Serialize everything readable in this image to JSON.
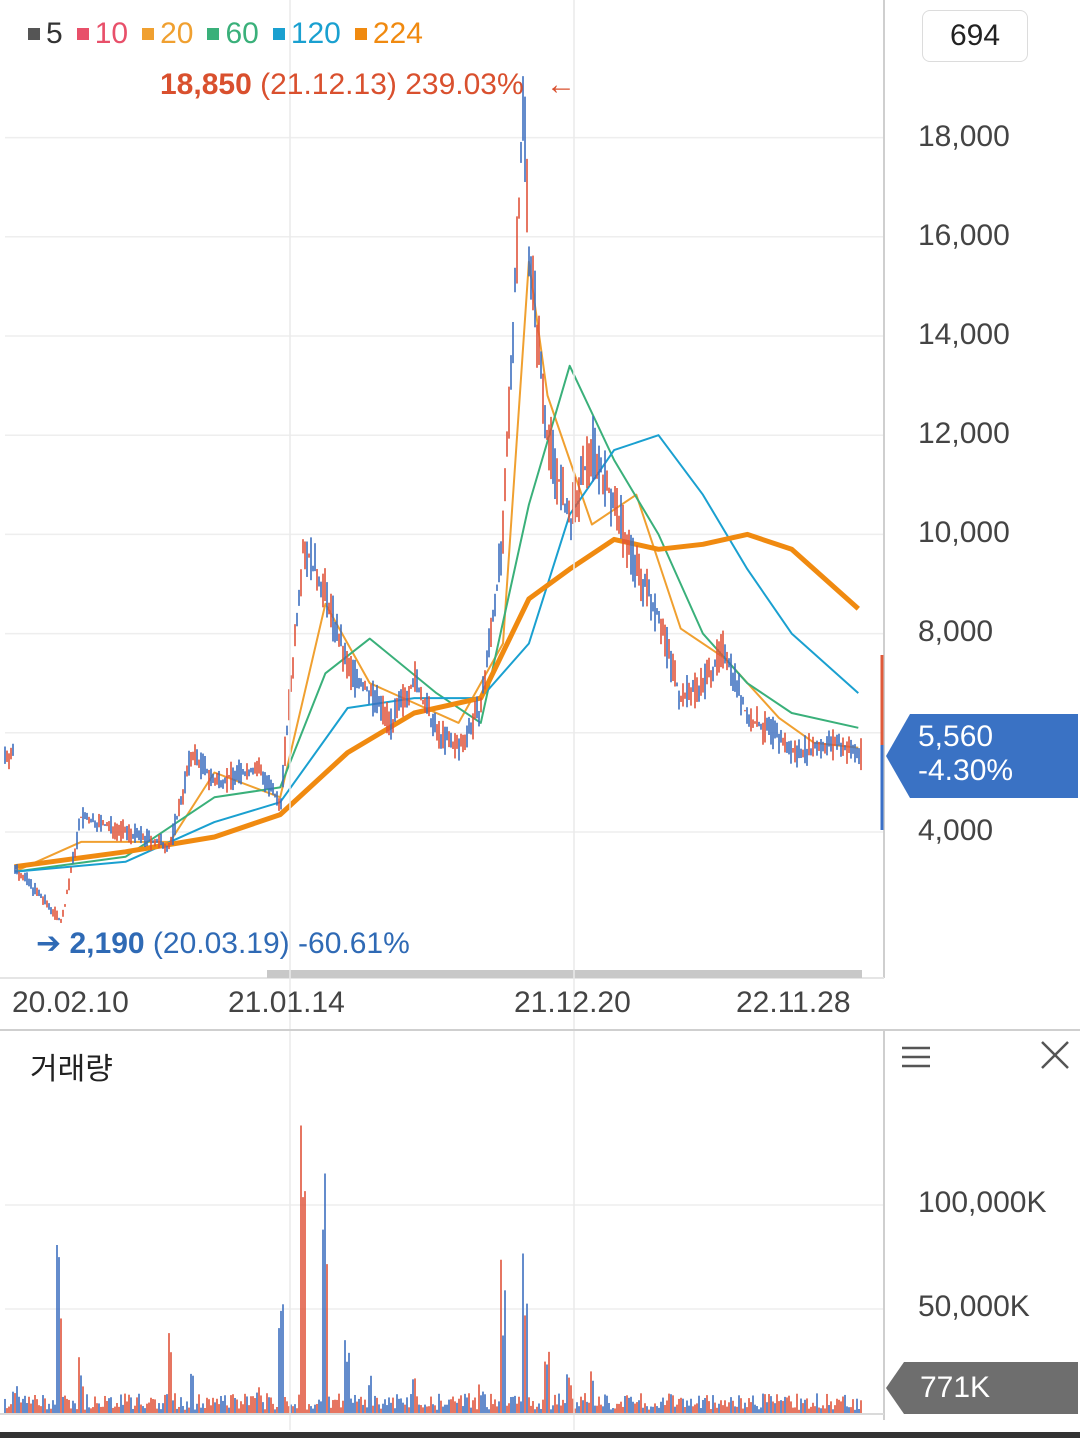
{
  "legend": [
    {
      "label": "5",
      "color": "#555555"
    },
    {
      "label": "10",
      "color": "#e8506a"
    },
    {
      "label": "20",
      "color": "#f0a030"
    },
    {
      "label": "60",
      "color": "#3ab07a"
    },
    {
      "label": "120",
      "color": "#1aa0d0"
    },
    {
      "label": "224",
      "color": "#f08a10"
    }
  ],
  "price_box": "694",
  "annotations": {
    "high": {
      "price": "18,850",
      "date": "(21.12.13)",
      "pct": "239.03%",
      "arrow": "←"
    },
    "low": {
      "arrow": "➔",
      "price": "2,190",
      "date": "(20.03.19)",
      "pct": "-60.61%"
    }
  },
  "current": {
    "price": "5,560",
    "change": "-4.30%"
  },
  "volume": {
    "title": "거래량",
    "current": "771K"
  },
  "icons": {
    "menu": "menu-icon",
    "close": "close-icon"
  },
  "chart_data": [
    {
      "type": "line",
      "title": "",
      "x_tick_labels": [
        "20.02.10",
        "21.01.14",
        "21.12.20",
        "22.11.28"
      ],
      "y_tick_labels": [
        "18,000",
        "16,000",
        "14,000",
        "12,000",
        "10,000",
        "8,000",
        "4,000"
      ],
      "ylim": [
        1800,
        19400
      ],
      "grid": true,
      "legend_placement": "top-left",
      "series": [
        {
          "name": "5",
          "x": [
            "20.01",
            "20.03.19",
            "20.04",
            "20.06",
            "20.08",
            "20.09",
            "20.10",
            "20.12",
            "21.01.14",
            "21.02",
            "21.03",
            "21.04",
            "21.05",
            "21.06",
            "21.07",
            "21.08",
            "21.09",
            "21.10",
            "21.11",
            "21.12.13",
            "21.12.20",
            "22.01",
            "22.02",
            "22.03",
            "22.04",
            "22.05",
            "22.06",
            "22.07",
            "22.08",
            "22.09",
            "22.10",
            "22.11.28",
            "22.12",
            "23.01",
            "23.02",
            "23.03"
          ],
          "values": [
            3300,
            2200,
            4300,
            4000,
            3700,
            5600,
            5000,
            5300,
            4500,
            9800,
            8800,
            7300,
            6800,
            6200,
            7100,
            6000,
            5700,
            6500,
            9900,
            18850,
            15800,
            12000,
            10200,
            11800,
            10600,
            9300,
            8400,
            6700,
            7000,
            7700,
            6300,
            5900,
            5600,
            5700,
            5800,
            5560
          ]
        },
        {
          "name": "20",
          "x": [
            "20.01",
            "20.04",
            "20.08",
            "20.10",
            "21.01.14",
            "21.03",
            "21.05",
            "21.07",
            "21.09",
            "21.11",
            "21.12.20",
            "22.01",
            "22.03",
            "22.05",
            "22.07",
            "22.09",
            "22.11.28",
            "23.01",
            "23.03"
          ],
          "values": [
            3200,
            3800,
            3800,
            5200,
            4700,
            8600,
            7000,
            6600,
            6200,
            7800,
            15500,
            12800,
            10200,
            10800,
            8100,
            7500,
            6300,
            5800,
            5700
          ]
        },
        {
          "name": "60",
          "x": [
            "20.01",
            "20.06",
            "20.10",
            "21.01.14",
            "21.03",
            "21.05",
            "21.08",
            "21.10",
            "21.12.20",
            "22.02",
            "22.04",
            "22.06",
            "22.08",
            "22.10",
            "22.12",
            "23.03"
          ],
          "values": [
            3200,
            3500,
            4700,
            4900,
            7200,
            7900,
            6800,
            6200,
            10600,
            13400,
            11500,
            10000,
            8000,
            7000,
            6400,
            6100
          ]
        },
        {
          "name": "120",
          "x": [
            "20.01",
            "20.06",
            "20.10",
            "21.01.14",
            "21.04",
            "21.07",
            "21.10",
            "21.12.20",
            "22.02",
            "22.04",
            "22.06",
            "22.08",
            "22.10",
            "22.12",
            "23.03"
          ],
          "values": [
            3200,
            3400,
            4200,
            4600,
            6500,
            6700,
            6700,
            7800,
            10400,
            11700,
            12000,
            10800,
            9300,
            8000,
            6800
          ]
        },
        {
          "name": "224",
          "x": [
            "20.01",
            "20.06",
            "20.10",
            "21.01.14",
            "21.04",
            "21.07",
            "21.10",
            "21.12.20",
            "22.02",
            "22.04",
            "22.06",
            "22.08",
            "22.10",
            "22.12",
            "23.03"
          ],
          "values": [
            3300,
            3600,
            3900,
            4350,
            5600,
            6400,
            6700,
            8700,
            9300,
            9900,
            9700,
            9800,
            10000,
            9700,
            8500
          ]
        }
      ]
    },
    {
      "type": "bar",
      "title": "거래량",
      "y_tick_labels": [
        "100,000K",
        "50,000K"
      ],
      "ylim": [
        0,
        145000
      ],
      "grid": true,
      "x": [
        "20.01",
        "20.03",
        "20.04",
        "20.06",
        "20.08",
        "20.09",
        "20.10",
        "20.12",
        "21.01",
        "21.02",
        "21.03",
        "21.04",
        "21.05",
        "21.07",
        "21.09",
        "21.10",
        "21.11",
        "21.12",
        "22.01",
        "22.02",
        "22.03",
        "22.05",
        "22.07",
        "22.09",
        "22.11",
        "23.01",
        "23.03"
      ],
      "values": [
        15000,
        100000,
        30000,
        8000,
        45000,
        25000,
        10000,
        15000,
        60000,
        140000,
        120000,
        40000,
        20000,
        40000,
        10000,
        22000,
        87000,
        85000,
        45000,
        25000,
        25000,
        10000,
        8000,
        5000,
        4000,
        3000,
        771
      ]
    }
  ]
}
